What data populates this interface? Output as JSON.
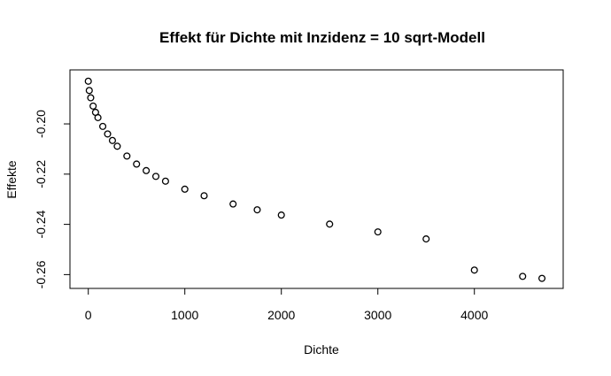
{
  "chart_data": {
    "type": "scatter",
    "title": "Effekt für Dichte mit Inzidenz = 10 sqrt-Modell",
    "xlabel": "Dichte",
    "ylabel": "Effekte",
    "xlim": [
      -190,
      4920
    ],
    "ylim": [
      -0.2655,
      -0.1785
    ],
    "xticks": [
      0,
      1000,
      2000,
      3000,
      4000
    ],
    "xtick_labels": [
      "0",
      "1000",
      "2000",
      "3000",
      "4000"
    ],
    "yticks": [
      -0.26,
      -0.24,
      -0.22,
      -0.2
    ],
    "ytick_labels": [
      "-0.26",
      "-0.24",
      "-0.22",
      "-0.20"
    ],
    "grid": false,
    "legend": "none",
    "marker": "open-circle",
    "color": "#000000",
    "series": [
      {
        "x": [
          0,
          10,
          25,
          50,
          75,
          100,
          150,
          200,
          250,
          300,
          400,
          500,
          600,
          700,
          800,
          1000,
          1200,
          1500,
          1750,
          2000,
          2500,
          3000,
          3500,
          4000,
          4500,
          4700
        ],
        "y": [
          -0.183,
          -0.1867,
          -0.1896,
          -0.1929,
          -0.1954,
          -0.1975,
          -0.201,
          -0.204,
          -0.2066,
          -0.2089,
          -0.2128,
          -0.216,
          -0.2186,
          -0.2209,
          -0.2228,
          -0.226,
          -0.2286,
          -0.2319,
          -0.2342,
          -0.2363,
          -0.2399,
          -0.243,
          -0.2458,
          -0.2582,
          -0.2607,
          -0.2615
        ]
      }
    ]
  }
}
